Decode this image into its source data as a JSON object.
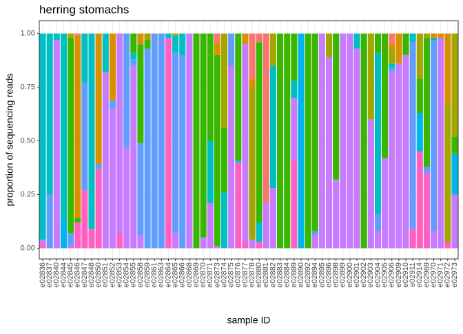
{
  "chart_data": {
    "type": "stacked_bar",
    "title": "herring stomachs",
    "x_label": "sample ID",
    "y_label": "proportion of sequencing reads",
    "categories": [
      "e02836",
      "e02837",
      "e02840",
      "e02844",
      "e02845",
      "e02846",
      "e02847",
      "e02848",
      "e02850",
      "e02851",
      "e02852",
      "e02853",
      "e02854",
      "e02855",
      "e02858",
      "e02859",
      "e02861",
      "e02863",
      "e02864",
      "e02865",
      "e02866",
      "e02868",
      "e02869",
      "e02870",
      "e02871",
      "e02873",
      "e02874",
      "e02875",
      "e02876",
      "e02877",
      "e02878",
      "e02880",
      "e02881",
      "e02882",
      "e02883",
      "e02884",
      "e02889",
      "e02890",
      "e02892",
      "e02894",
      "e02895",
      "e02896",
      "e02898",
      "e02899",
      "e02900",
      "e02901",
      "e02902",
      "e02903",
      "e02904",
      "e02905",
      "e02906",
      "e02909",
      "e02910",
      "e02911",
      "e02914",
      "e02969",
      "e02970",
      "e02971",
      "e02972",
      "e02973"
    ],
    "series": [
      {
        "color": "#FF61C3",
        "values": [
          0.02,
          0,
          0,
          0,
          0.01,
          0.12,
          0.27,
          0.09,
          0.37,
          0,
          0,
          0.07,
          0,
          0,
          0,
          0,
          0,
          0,
          0.98,
          0,
          0,
          0,
          0,
          0,
          0,
          0,
          0,
          0,
          0.4,
          0.03,
          0,
          0.03,
          0,
          0,
          0,
          0,
          0.41,
          0,
          0,
          0,
          0,
          0,
          0,
          0,
          0,
          0,
          0,
          0,
          0,
          0,
          0,
          0,
          0,
          0.09,
          0.45,
          0.35,
          0,
          0,
          0.03,
          0
        ]
      },
      {
        "color": "#C77CFF",
        "values": [
          0.02,
          0,
          0.97,
          0,
          0,
          0,
          0,
          0,
          0,
          0.82,
          0.65,
          0.93,
          0.47,
          0.85,
          0.06,
          0,
          0,
          0,
          0,
          0.07,
          0,
          1,
          0,
          0.05,
          0.21,
          0.01,
          0,
          0.85,
          0,
          0.92,
          0.04,
          0,
          0.21,
          0.28,
          0,
          0,
          0.29,
          0,
          0,
          0.06,
          1,
          0.89,
          0.32,
          1,
          1,
          0.93,
          0,
          0.6,
          0.08,
          0.42,
          0.82,
          0.86,
          0.9,
          0,
          0,
          0,
          0.08,
          0.98,
          0,
          0.25
        ]
      },
      {
        "color": "#619CFF",
        "values": [
          0,
          0.25,
          0,
          0,
          0.06,
          0,
          0.5,
          0,
          0.02,
          0,
          0.04,
          0,
          0.53,
          0.03,
          0.43,
          0.93,
          1,
          1,
          0,
          0.84,
          0.9,
          0,
          0,
          0,
          0,
          0,
          0,
          0.15,
          0,
          0,
          0,
          0,
          0,
          0,
          0,
          0,
          0,
          0,
          0,
          0.02,
          0,
          0,
          0,
          0,
          0,
          0,
          0,
          0,
          0.08,
          0,
          0.02,
          0,
          0,
          0.87,
          0,
          0.03,
          0.89,
          0,
          0,
          0
        ]
      },
      {
        "color": "#00B4EF",
        "values": [
          0,
          0,
          0,
          0.14,
          0,
          0,
          0,
          0,
          0,
          0,
          0,
          0,
          0,
          0,
          0,
          0,
          0,
          0,
          0,
          0,
          0,
          0,
          0,
          0,
          0,
          0,
          0,
          0,
          0,
          0,
          0,
          0,
          0,
          0,
          0,
          0,
          0,
          1,
          0,
          0,
          0,
          0,
          0,
          0,
          0,
          0,
          0,
          0,
          0,
          0,
          0,
          0,
          0,
          0,
          0.18,
          0,
          0,
          0,
          0,
          0.19
        ]
      },
      {
        "color": "#00BFC4",
        "values": [
          0.96,
          0.75,
          0.03,
          0.86,
          0,
          0,
          0.23,
          0.91,
          0,
          0.18,
          0,
          0,
          0,
          0.03,
          0,
          0,
          0,
          0,
          0.02,
          0.08,
          0.1,
          0,
          0,
          0,
          0.29,
          0,
          0.26,
          0,
          0.01,
          0,
          0,
          0.09,
          0,
          0.57,
          0,
          0,
          0.08,
          0,
          0,
          0,
          0,
          0,
          0,
          0,
          0,
          0.07,
          0,
          0,
          0.75,
          0,
          0.02,
          0,
          0,
          0.04,
          0,
          0,
          0.01,
          0,
          0,
          0
        ]
      },
      {
        "color": "#39B600",
        "values": [
          0,
          0,
          0,
          0,
          0.91,
          0.02,
          0,
          0,
          0,
          0,
          0,
          0,
          0,
          0.09,
          0.46,
          0.04,
          0,
          0,
          0,
          0,
          0,
          0,
          1,
          0.95,
          0.5,
          0.89,
          0.3,
          0,
          0.59,
          0,
          0,
          0.84,
          0,
          0,
          1,
          1,
          0.22,
          0,
          1,
          0.92,
          0,
          0,
          0.68,
          0,
          0,
          0,
          1,
          0,
          0.09,
          0.58,
          0,
          0,
          0.1,
          0,
          0.16,
          0.6,
          0,
          0,
          0,
          0.08
        ]
      },
      {
        "color": "#A3A500",
        "values": [
          0,
          0,
          0,
          0,
          0.02,
          0,
          0,
          0,
          0,
          0,
          0,
          0,
          0,
          0,
          0,
          0.03,
          0,
          0,
          0,
          0.01,
          0,
          0,
          0,
          0,
          0,
          0,
          0.44,
          0,
          0,
          0,
          0.71,
          0,
          0,
          0.15,
          0,
          0,
          0,
          0,
          0,
          0,
          0,
          0.11,
          0,
          0,
          0,
          0,
          0,
          0.4,
          0,
          0,
          0.07,
          0,
          0,
          0,
          0.21,
          0.02,
          0,
          0,
          0.64,
          0.48
        ]
      },
      {
        "color": "#D89000",
        "values": [
          0,
          0,
          0,
          0,
          0,
          0.85,
          0,
          0,
          0.61,
          0,
          0.31,
          0,
          0,
          0,
          0.05,
          0,
          0,
          0,
          0,
          0,
          0,
          0,
          0,
          0,
          0,
          0.06,
          0,
          0,
          0,
          0.05,
          0.04,
          0,
          0,
          0,
          0,
          0,
          0,
          0,
          0,
          0,
          0,
          0,
          0,
          0,
          0,
          0,
          0,
          0,
          0,
          0,
          0.02,
          0.14,
          0,
          0,
          0,
          0,
          0.02,
          0.02,
          0.33,
          0
        ]
      },
      {
        "color": "#F8766D",
        "values": [
          0,
          0,
          0,
          0,
          0,
          0.01,
          0,
          0,
          0,
          0,
          0,
          0,
          0,
          0,
          0,
          0,
          0,
          0,
          0,
          0,
          0,
          0,
          0,
          0,
          0,
          0.04,
          0,
          0,
          0,
          0,
          0.21,
          0.04,
          0.79,
          0,
          0,
          0,
          0,
          0,
          0,
          0,
          0,
          0,
          0,
          0,
          0,
          0,
          0,
          0,
          0,
          0,
          0.05,
          0,
          0,
          0,
          0,
          0,
          0,
          0,
          0,
          0
        ]
      }
    ],
    "ylim": [
      -0.05,
      1.06
    ],
    "yticks": [
      {
        "value": 0,
        "label": "0.00"
      },
      {
        "value": 0.25,
        "label": "0.25"
      },
      {
        "value": 0.5,
        "label": "0.50"
      },
      {
        "value": 0.75,
        "label": "0.75"
      },
      {
        "value": 1,
        "label": "1.00"
      }
    ],
    "grid": true
  }
}
